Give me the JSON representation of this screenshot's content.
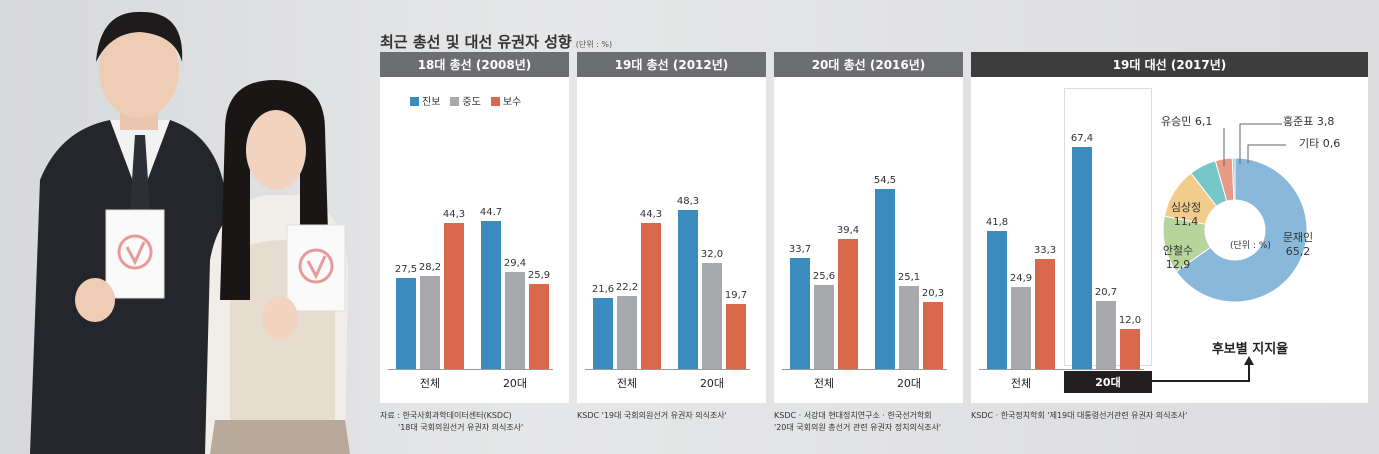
{
  "title": "최근 총선 및 대선 유권자 성향",
  "unit_note": "(단위 : %)",
  "legend": [
    {
      "label": "진보",
      "color": "#3b8bbf"
    },
    {
      "label": "중도",
      "color": "#a7a9ac"
    },
    {
      "label": "보수",
      "color": "#d9694a"
    }
  ],
  "chart_data": [
    {
      "type": "bar",
      "title": "18대 총선 (2008년)",
      "categories": [
        "전체",
        "20대"
      ],
      "series": [
        {
          "name": "진보",
          "values": [
            27.5,
            44.7
          ]
        },
        {
          "name": "중도",
          "values": [
            28.2,
            29.4
          ]
        },
        {
          "name": "보수",
          "values": [
            44.3,
            25.9
          ]
        }
      ],
      "value_labels": [
        [
          "27,5",
          "28,2",
          "44,3"
        ],
        [
          "44.7",
          "29,4",
          "25,9"
        ]
      ],
      "source": [
        "자료 : 한국사회과학데이터센터(KSDC)",
        "'18대 국회의원선거 유권자 의식조사'"
      ]
    },
    {
      "type": "bar",
      "title": "19대 총선 (2012년)",
      "categories": [
        "전체",
        "20대"
      ],
      "series": [
        {
          "name": "진보",
          "values": [
            21.6,
            48.3
          ]
        },
        {
          "name": "중도",
          "values": [
            22.2,
            32.0
          ]
        },
        {
          "name": "보수",
          "values": [
            44.3,
            19.7
          ]
        }
      ],
      "value_labels": [
        [
          "21,6",
          "22,2",
          "44,3"
        ],
        [
          "48,3",
          "32,0",
          "19,7"
        ]
      ],
      "source": [
        "KSDC '19대 국회의원선거 유권자 의식조사'"
      ]
    },
    {
      "type": "bar",
      "title": "20대 총선 (2016년)",
      "categories": [
        "전체",
        "20대"
      ],
      "series": [
        {
          "name": "진보",
          "values": [
            33.7,
            54.5
          ]
        },
        {
          "name": "중도",
          "values": [
            25.6,
            25.1
          ]
        },
        {
          "name": "보수",
          "values": [
            39.4,
            20.3
          ]
        }
      ],
      "value_labels": [
        [
          "33,7",
          "25,6",
          "39,4"
        ],
        [
          "54,5",
          "25,1",
          "20,3"
        ]
      ],
      "source": [
        "KSDC · 서강대 현대정치연구소 · 한국선거학회",
        "'20대 국회의원 총선거 관련 유권자 정치의식조사'"
      ]
    },
    {
      "type": "bar",
      "title": "19대 대선 (2017년)",
      "categories": [
        "전체",
        "20대"
      ],
      "series": [
        {
          "name": "진보",
          "values": [
            41.8,
            67.4
          ]
        },
        {
          "name": "중도",
          "values": [
            24.9,
            20.7
          ]
        },
        {
          "name": "보수",
          "values": [
            33.3,
            12.0
          ]
        }
      ],
      "value_labels": [
        [
          "41,8",
          "24,9",
          "33,3"
        ],
        [
          "67,4",
          "20,7",
          "12,0"
        ]
      ],
      "source": [
        "KSDC · 한국정치학회 '제19대 대통령선거관련 유권자 의식조사'"
      ]
    },
    {
      "type": "pie",
      "title": "후보별 지지율",
      "center_label": "(단위 : %)",
      "slices": [
        {
          "label": "문재인",
          "value": 65.2,
          "value_label": "65,2",
          "color": "#8ab8da"
        },
        {
          "label": "안철수",
          "value": 12.9,
          "value_label": "12,9",
          "color": "#b7d59b"
        },
        {
          "label": "심상정",
          "value": 11.4,
          "value_label": "11,4",
          "color": "#f1cc8b"
        },
        {
          "label": "유승민",
          "value": 6.1,
          "value_label": "6,1",
          "color": "#76c7c8"
        },
        {
          "label": "홍준표",
          "value": 3.8,
          "value_label": "3,8",
          "color": "#e79b85"
        },
        {
          "label": "기타",
          "value": 0.6,
          "value_label": "0,6",
          "color": "#9fc8e6"
        }
      ]
    }
  ],
  "highlight_tag": "20대"
}
